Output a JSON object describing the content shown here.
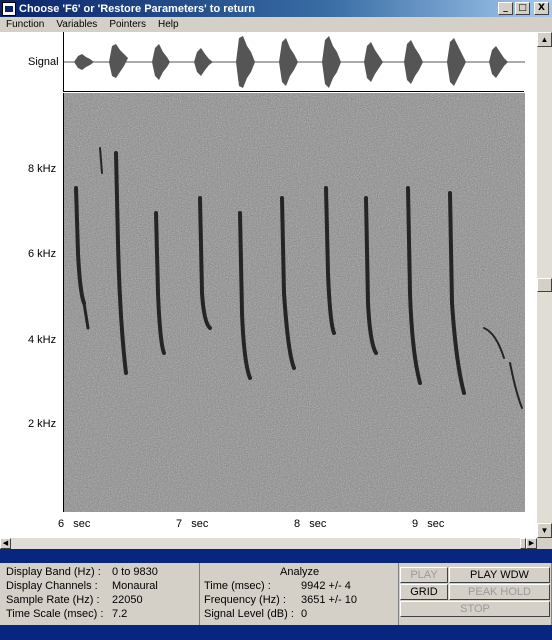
{
  "window": {
    "title": "Choose 'F6' or 'Restore Parameters' to return"
  },
  "title_buttons": {
    "minimize": "_",
    "maximize": "□",
    "close": "X"
  },
  "menu": [
    "Function",
    "Variables",
    "Pointers",
    "Help"
  ],
  "plot": {
    "signal_label": "Signal",
    "y_ticks": [
      "8 kHz",
      "6 kHz",
      "4 kHz",
      "2 kHz"
    ],
    "x_ticks": [
      {
        "num": "6",
        "unit": "sec"
      },
      {
        "num": "7",
        "unit": "sec"
      },
      {
        "num": "8",
        "unit": "sec"
      },
      {
        "num": "9",
        "unit": "sec"
      }
    ]
  },
  "info": {
    "display_band_label": "Display Band (Hz) :",
    "display_band_value": "0 to 9830",
    "display_channels_label": "Display Channels :",
    "display_channels_value": "Monaural",
    "sample_rate_label": "Sample Rate (Hz) :",
    "sample_rate_value": "22050",
    "time_scale_label": "Time Scale (msec) :",
    "time_scale_value": "7.2",
    "analyze_title": "Analyze",
    "time_label": "Time (msec) :",
    "time_value": "9942 +/- 4",
    "freq_label": "Frequency (Hz) :",
    "freq_value": "3651 +/- 10",
    "level_label": "Signal Level (dB) :",
    "level_value": "0"
  },
  "buttons": {
    "play": "PLAY",
    "play_wdw": "PLAY WDW",
    "grid": "GRID",
    "peak_hold": "PEAK HOLD",
    "stop": "STOP"
  }
}
